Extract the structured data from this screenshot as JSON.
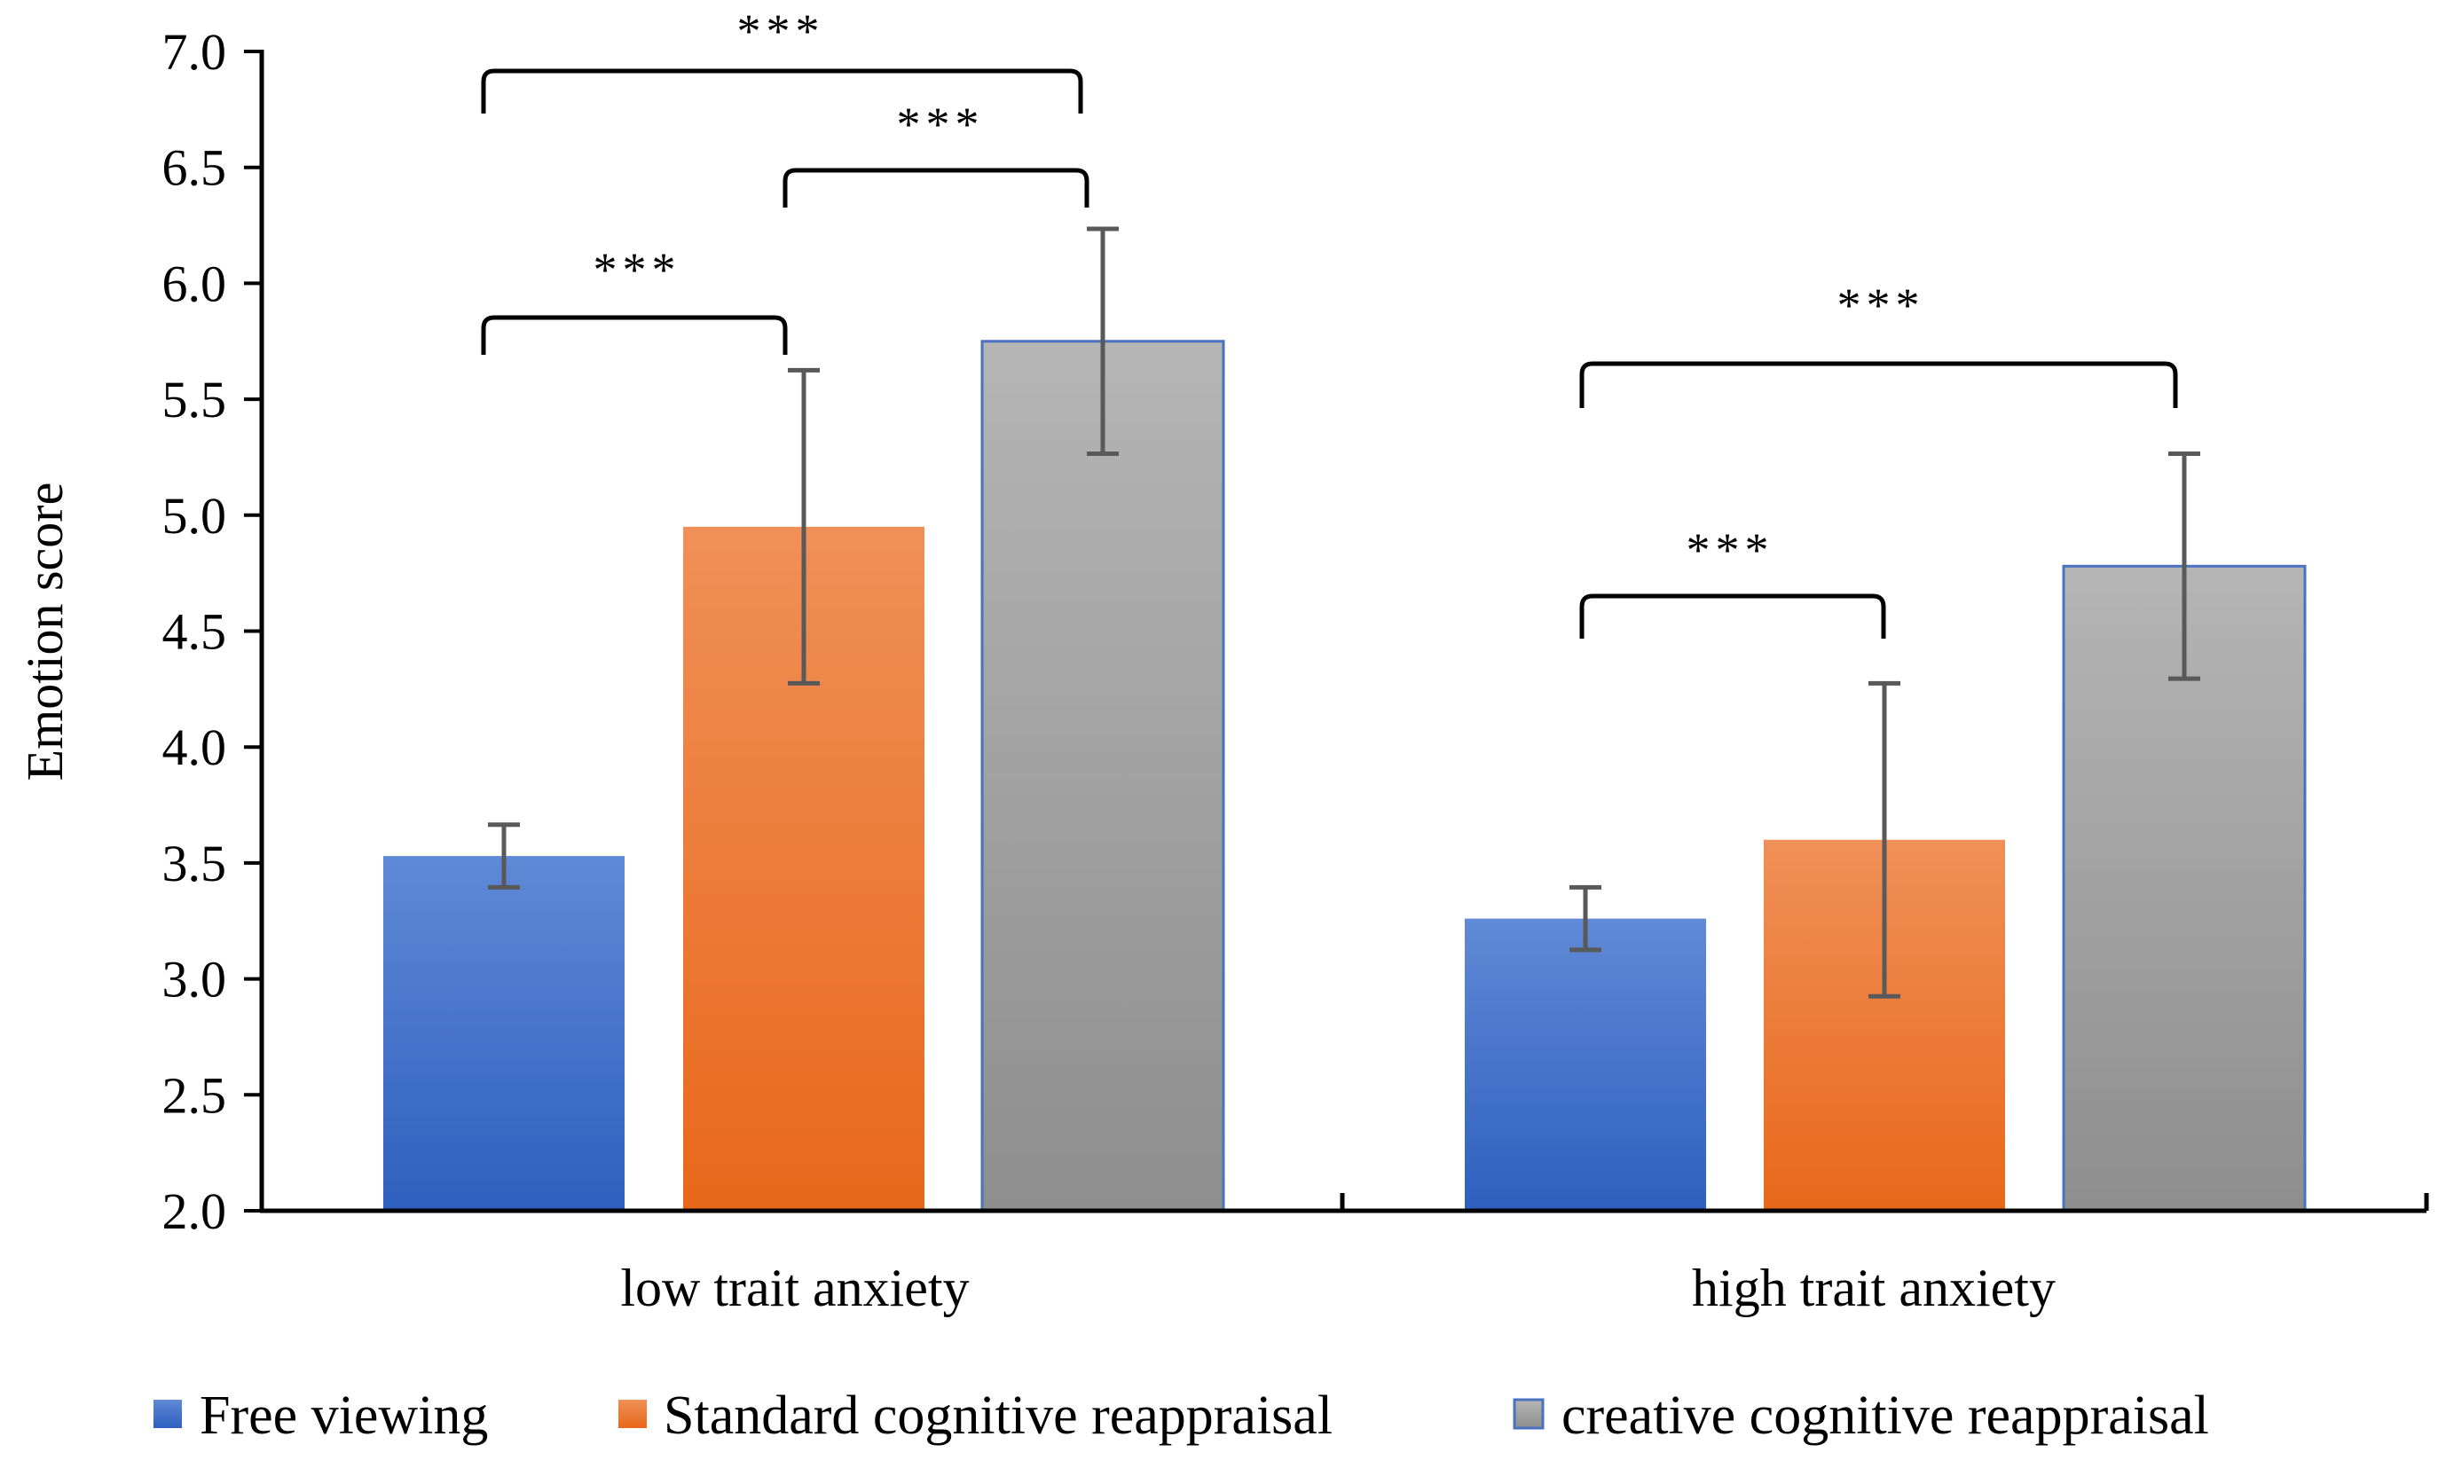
{
  "chart_data": {
    "type": "bar",
    "title": "",
    "xlabel": "",
    "ylabel": "Emotion score",
    "ylim": [
      2.0,
      7.0
    ],
    "yticks": [
      "2.0",
      "2.5",
      "3.0",
      "3.5",
      "4.0",
      "4.5",
      "5.0",
      "5.5",
      "6.0",
      "6.5",
      "7.0"
    ],
    "categories": [
      "low trait anxiety",
      "high trait anxiety"
    ],
    "series": [
      {
        "name": "Free viewing",
        "values": [
          3.53,
          3.26
        ],
        "errors": [
          0.135,
          0.135
        ],
        "color": "#4472c4",
        "color_top": "#5f8ad6",
        "color_bottom": "#2f5fbf"
      },
      {
        "name": "Standard cognitive reappraisal",
        "values": [
          4.95,
          3.6
        ],
        "errors": [
          0.675,
          0.675
        ],
        "color": "#ed7d31",
        "color_top": "#f09058",
        "color_bottom": "#e8681a"
      },
      {
        "name": "creative cognitive reappraisal",
        "values": [
          5.75,
          4.78
        ],
        "errors": [
          0.485,
          0.485
        ],
        "color": "#a5a5a5",
        "color_top": "#b5b5b5",
        "color_bottom": "#8e8e8e"
      }
    ],
    "significance": [
      {
        "group": 0,
        "from": 0,
        "to": 1,
        "label": "***"
      },
      {
        "group": 0,
        "from": 1,
        "to": 2,
        "label": "***"
      },
      {
        "group": 0,
        "from": 0,
        "to": 2,
        "label": "***"
      },
      {
        "group": 1,
        "from": 0,
        "to": 1,
        "label": "***"
      },
      {
        "group": 1,
        "from": 0,
        "to": 2,
        "label": "***"
      }
    ],
    "legend_position": "bottom",
    "grid": false
  }
}
